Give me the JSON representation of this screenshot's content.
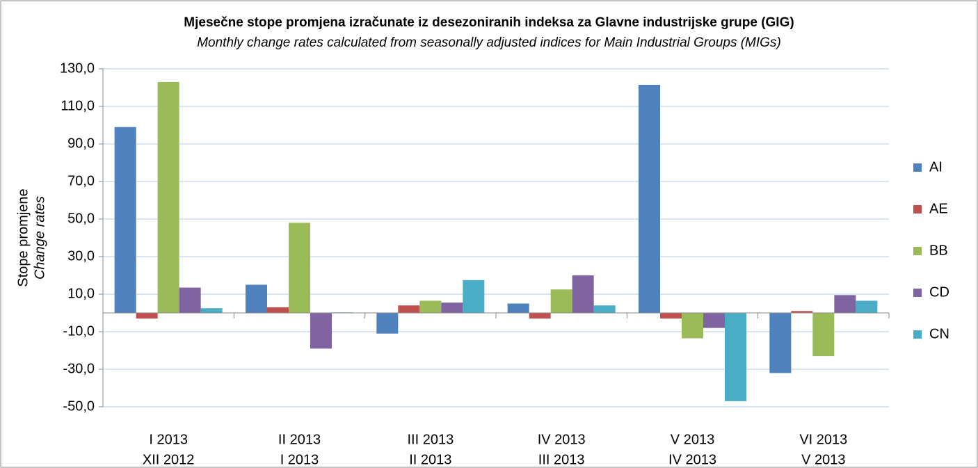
{
  "chart_data": {
    "type": "bar",
    "title": "Mjesečne stope promjena izračunate iz desezoniranih indeksa za Glavne industrijske grupe (GIG)",
    "subtitle": "Monthly change rates calculated from seasonally adjusted indices for Main Industrial Groups (MIGs)",
    "ylabel": [
      "Stope promjene",
      "Change rates"
    ],
    "categories": [
      [
        "I 2013",
        "XII 2012"
      ],
      [
        "II 2013",
        "I 2013"
      ],
      [
        "III 2013",
        "II 2013"
      ],
      [
        "IV 2013",
        "III 2013"
      ],
      [
        "V 2013",
        "IV 2013"
      ],
      [
        "VI 2013",
        "V 2013"
      ]
    ],
    "series": [
      {
        "name": "AI",
        "color": "#4f81bd",
        "values": [
          99,
          15,
          -11,
          5,
          121.5,
          -32
        ]
      },
      {
        "name": "AE",
        "color": "#c0504d",
        "values": [
          -3,
          3,
          4,
          -3,
          -3,
          1
        ]
      },
      {
        "name": "BB",
        "color": "#9bbb59",
        "values": [
          123,
          48,
          6.5,
          12.5,
          -13.5,
          -23
        ]
      },
      {
        "name": "CD",
        "color": "#8064a2",
        "values": [
          13.5,
          -19,
          5.5,
          20,
          -8,
          9.5
        ]
      },
      {
        "name": "CN",
        "color": "#4bacc6",
        "values": [
          2.5,
          0.3,
          17.5,
          4,
          -47,
          6.5
        ]
      }
    ],
    "ylim": [
      -50,
      130
    ],
    "yticks": [
      {
        "value": 130,
        "label": "130,0"
      },
      {
        "value": 110,
        "label": "110,0"
      },
      {
        "value": 90,
        "label": "90,0"
      },
      {
        "value": 70,
        "label": "70,0"
      },
      {
        "value": 50,
        "label": "50,0"
      },
      {
        "value": 30,
        "label": "30,0"
      },
      {
        "value": 10,
        "label": "10,0"
      },
      {
        "value": -10,
        "label": "-10,0"
      },
      {
        "value": -30,
        "label": "-30,0"
      },
      {
        "value": -50,
        "label": "-50,0"
      }
    ],
    "grid": true,
    "legend": "right"
  }
}
